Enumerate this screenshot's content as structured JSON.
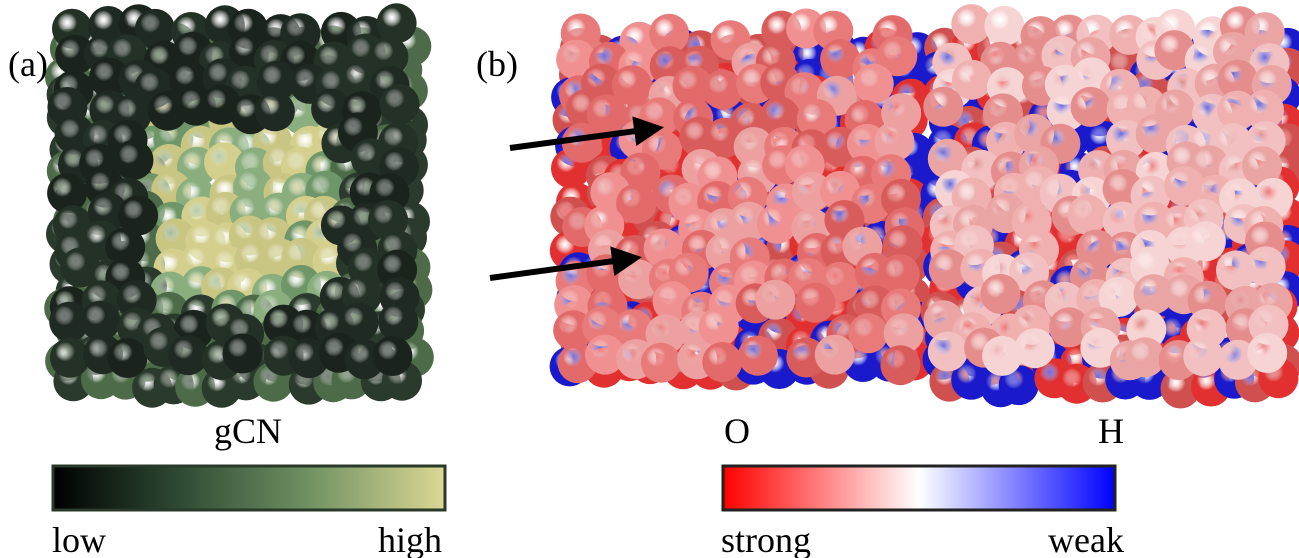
{
  "panels": [
    {
      "label": "(a)",
      "colorbar": {
        "title": "gCN",
        "min_label": "low",
        "max_label": "high"
      }
    },
    {
      "label": "(b)",
      "sub_labels": [
        "O",
        "H"
      ],
      "colorbar": {
        "min_label": "strong",
        "max_label": "weak"
      }
    }
  ]
}
